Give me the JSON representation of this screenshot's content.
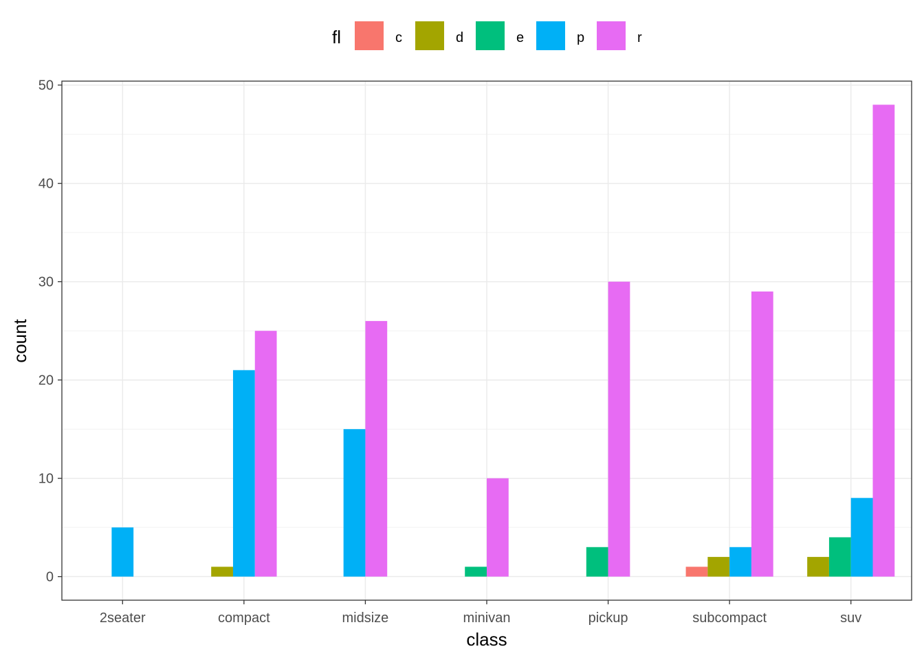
{
  "chart_data": {
    "type": "bar",
    "xlabel": "class",
    "ylabel": "count",
    "ylim": [
      -2.4,
      50.4
    ],
    "yticks": [
      0,
      10,
      20,
      30,
      40,
      50
    ],
    "grid": true,
    "legend_position": "top",
    "legend_title": "fl",
    "categories": [
      "2seater",
      "compact",
      "midsize",
      "minivan",
      "pickup",
      "subcompact",
      "suv"
    ],
    "series": [
      {
        "name": "c",
        "color": "#F8766D",
        "values": [
          null,
          null,
          null,
          null,
          null,
          1,
          null
        ]
      },
      {
        "name": "d",
        "color": "#A3A500",
        "values": [
          null,
          1,
          null,
          null,
          null,
          2,
          2
        ]
      },
      {
        "name": "e",
        "color": "#00BF7D",
        "values": [
          null,
          null,
          null,
          1,
          3,
          null,
          4
        ]
      },
      {
        "name": "p",
        "color": "#00B0F6",
        "values": [
          5,
          21,
          15,
          null,
          null,
          3,
          8
        ]
      },
      {
        "name": "r",
        "color": "#E76BF3",
        "values": [
          null,
          25,
          26,
          10,
          30,
          29,
          48
        ]
      }
    ]
  }
}
